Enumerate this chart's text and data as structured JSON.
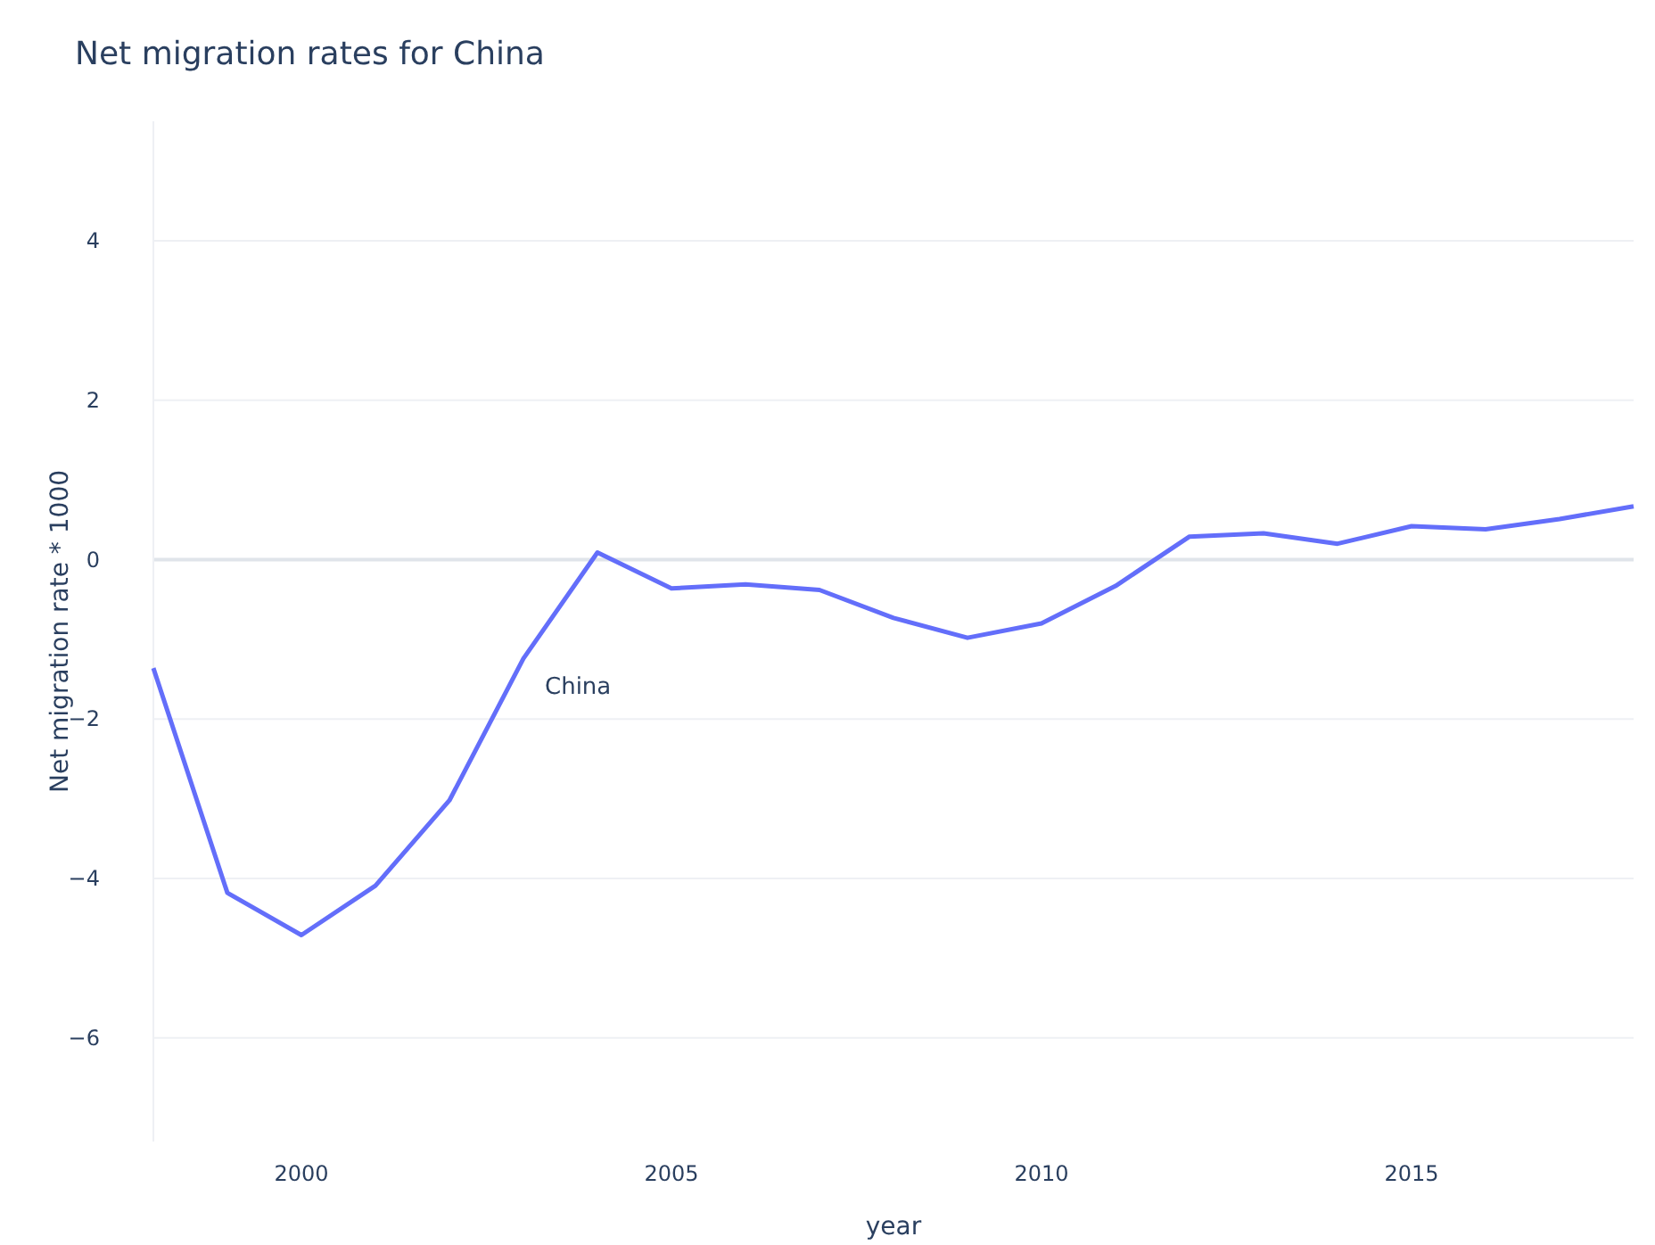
{
  "chart_data": {
    "type": "line",
    "title": "Net migration rates for China",
    "xlabel": "year",
    "ylabel": "Net migration rate * 1000",
    "x": [
      1998,
      1999,
      2000,
      2001,
      2002,
      2003,
      2004,
      2005,
      2006,
      2007,
      2008,
      2009,
      2010,
      2011,
      2012,
      2013,
      2014,
      2015,
      2016,
      2017,
      2018
    ],
    "series": [
      {
        "name": "China",
        "color": "#636efa",
        "values": [
          -1.36,
          -4.18,
          -4.71,
          -4.09,
          -3.02,
          -1.24,
          0.09,
          -0.36,
          -0.31,
          -0.38,
          -0.73,
          -0.98,
          -0.8,
          -0.33,
          0.29,
          0.33,
          0.2,
          0.42,
          0.38,
          0.51,
          0.67
        ]
      }
    ],
    "xlim": [
      1998,
      2018
    ],
    "xticks": [
      2000,
      2005,
      2010,
      2015
    ],
    "ylim": [
      -7.3,
      5.5
    ],
    "yticks": [
      -6,
      -4,
      -2,
      0,
      2,
      4
    ],
    "grid": "y",
    "marker": "none",
    "line_style": "solid"
  }
}
